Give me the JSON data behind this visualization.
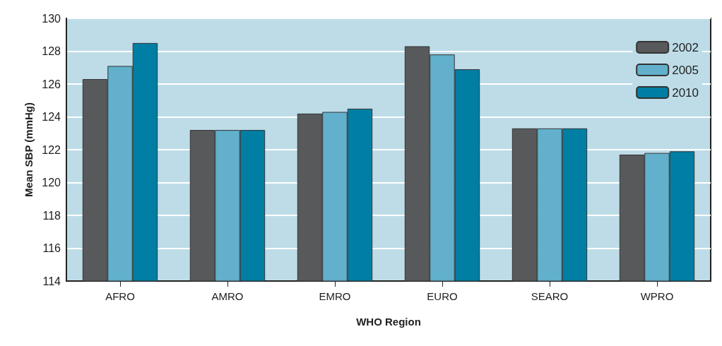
{
  "chart_data": {
    "type": "bar",
    "xlabel": "WHO Region",
    "ylabel": "Mean SBP (mmHg)",
    "categories": [
      "AFRO",
      "AMRO",
      "EMRO",
      "EURO",
      "SEARO",
      "WPRO"
    ],
    "series": [
      {
        "name": "2002",
        "color": "#58595b",
        "values": [
          126.3,
          123.2,
          124.2,
          128.3,
          123.3,
          121.7
        ]
      },
      {
        "name": "2005",
        "color": "#62b0cc",
        "values": [
          127.1,
          123.2,
          124.3,
          127.8,
          123.3,
          121.8
        ]
      },
      {
        "name": "2010",
        "color": "#007ea3",
        "values": [
          128.5,
          123.2,
          124.5,
          126.9,
          123.3,
          121.9
        ]
      }
    ],
    "ylim": [
      114,
      130
    ],
    "yticks": [
      114,
      116,
      118,
      120,
      122,
      124,
      126,
      128,
      130
    ],
    "grid": "y",
    "legend": "top right"
  }
}
